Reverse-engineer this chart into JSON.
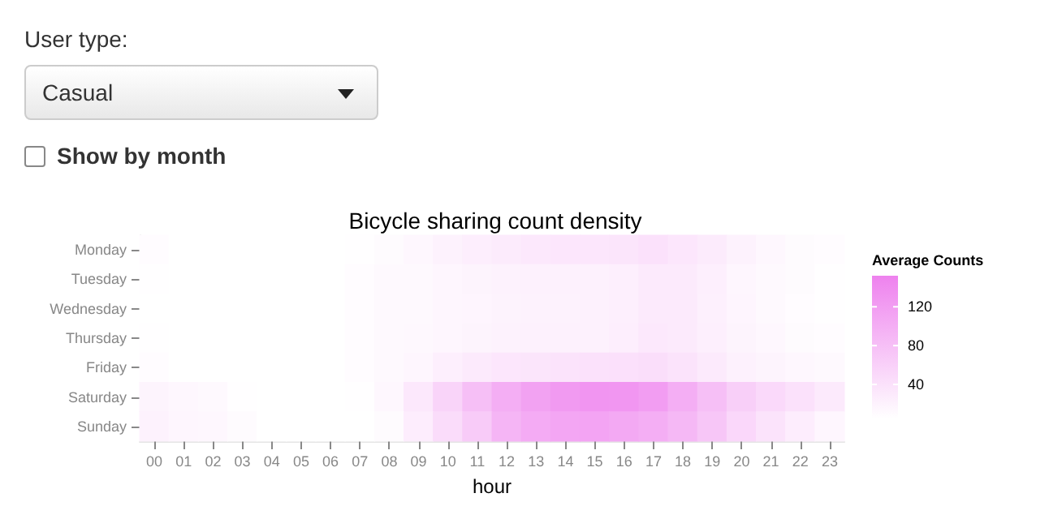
{
  "chart_data": {
    "type": "heatmap",
    "title": "Bicycle sharing count density",
    "xlabel": "hour",
    "clabel": "Average Counts",
    "annotations": [
      "User type:",
      "Casual",
      "Show by month"
    ],
    "categories": [
      "00",
      "01",
      "02",
      "03",
      "04",
      "05",
      "06",
      "07",
      "08",
      "09",
      "10",
      "11",
      "12",
      "13",
      "14",
      "15",
      "16",
      "17",
      "18",
      "19",
      "20",
      "21",
      "22",
      "23"
    ],
    "y_categories": [
      "Monday",
      "Tuesday",
      "Wednesday",
      "Thursday",
      "Friday",
      "Saturday",
      "Sunday"
    ],
    "cells": [
      [
        8,
        4,
        3,
        2,
        2,
        2,
        3,
        6,
        10,
        14,
        20,
        25,
        28,
        32,
        34,
        34,
        36,
        40,
        34,
        28,
        20,
        14,
        10,
        8
      ],
      [
        6,
        3,
        2,
        1,
        1,
        2,
        4,
        8,
        12,
        12,
        16,
        18,
        20,
        22,
        22,
        22,
        24,
        30,
        30,
        24,
        16,
        12,
        10,
        6
      ],
      [
        5,
        3,
        2,
        1,
        1,
        2,
        4,
        8,
        12,
        12,
        15,
        17,
        19,
        20,
        20,
        21,
        24,
        30,
        30,
        23,
        17,
        12,
        9,
        6
      ],
      [
        6,
        3,
        2,
        1,
        1,
        2,
        4,
        8,
        12,
        13,
        16,
        18,
        20,
        22,
        22,
        22,
        25,
        32,
        30,
        24,
        18,
        14,
        10,
        8
      ],
      [
        8,
        4,
        3,
        2,
        1,
        2,
        4,
        8,
        12,
        16,
        24,
        30,
        34,
        36,
        38,
        40,
        42,
        44,
        38,
        30,
        22,
        18,
        14,
        12
      ],
      [
        18,
        14,
        12,
        6,
        3,
        2,
        3,
        6,
        14,
        32,
        56,
        80,
        100,
        114,
        124,
        130,
        128,
        120,
        100,
        80,
        62,
        50,
        40,
        30
      ],
      [
        20,
        16,
        14,
        10,
        4,
        2,
        3,
        4,
        10,
        26,
        46,
        66,
        92,
        104,
        110,
        112,
        106,
        100,
        88,
        72,
        52,
        38,
        26,
        16
      ]
    ],
    "colors": [
      "#ffffff",
      "#ee82ee"
    ],
    "clim": [
      5,
      152
    ],
    "cticks": [
      40,
      80,
      120
    ],
    "grid": false
  }
}
